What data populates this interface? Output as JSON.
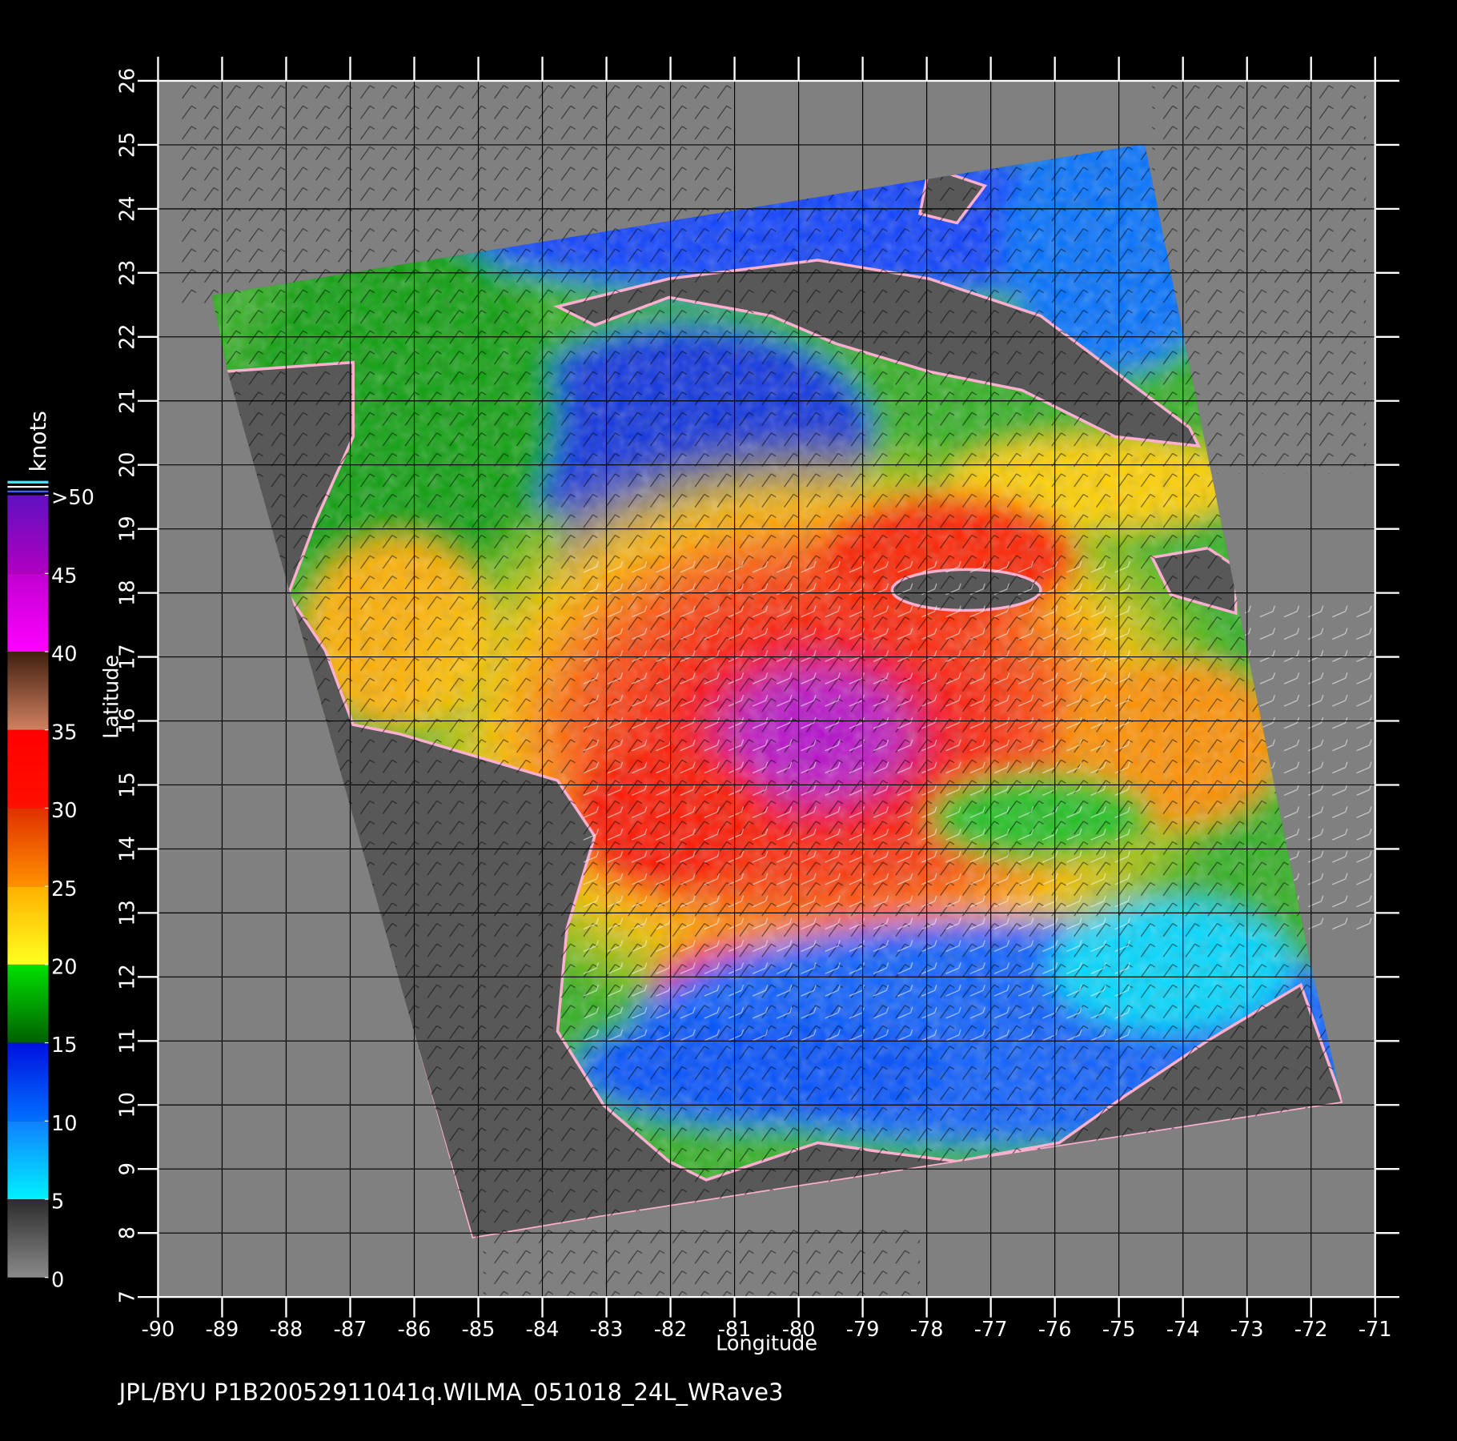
{
  "map": {
    "xlabel": "Longitude",
    "ylabel": "Latitude",
    "xlim": [
      -90,
      -71
    ],
    "ylim": [
      7,
      26
    ],
    "xticks": [
      -90,
      -89,
      -88,
      -87,
      -86,
      -85,
      -84,
      -83,
      -82,
      -81,
      -80,
      -79,
      -78,
      -77,
      -76,
      -75,
      -74,
      -73,
      -72,
      -71
    ],
    "yticks": [
      7,
      8,
      9,
      10,
      11,
      12,
      13,
      14,
      15,
      16,
      17,
      18,
      19,
      20,
      21,
      22,
      23,
      24,
      25,
      26
    ],
    "grid": true
  },
  "colorbar": {
    "title": "knots",
    "clim": [
      0,
      50
    ],
    "ticks": [
      0,
      5,
      10,
      15,
      20,
      25,
      30,
      35,
      40,
      45,
      {
        "value": 50,
        "label": ">50"
      }
    ],
    "band_colors": [
      [
        "#8a8a8a",
        "#2c2c2c"
      ],
      [
        "#00f0ff",
        "#1080ff"
      ],
      [
        "#0070ff",
        "#0010e0"
      ],
      [
        "#006000",
        "#00e000"
      ],
      [
        "#ffff20",
        "#ffb000"
      ],
      [
        "#ff9000",
        "#e03000"
      ],
      [
        "#ff1000",
        "#ff0000"
      ],
      [
        "#d08060",
        "#402010"
      ],
      [
        "#ff00ff",
        "#c000d0"
      ],
      [
        "#b000c0",
        "#6010c0"
      ]
    ]
  },
  "footer": "JPL/BYU  P1B20052911041q.WILMA_051018_24L_WRave3"
}
